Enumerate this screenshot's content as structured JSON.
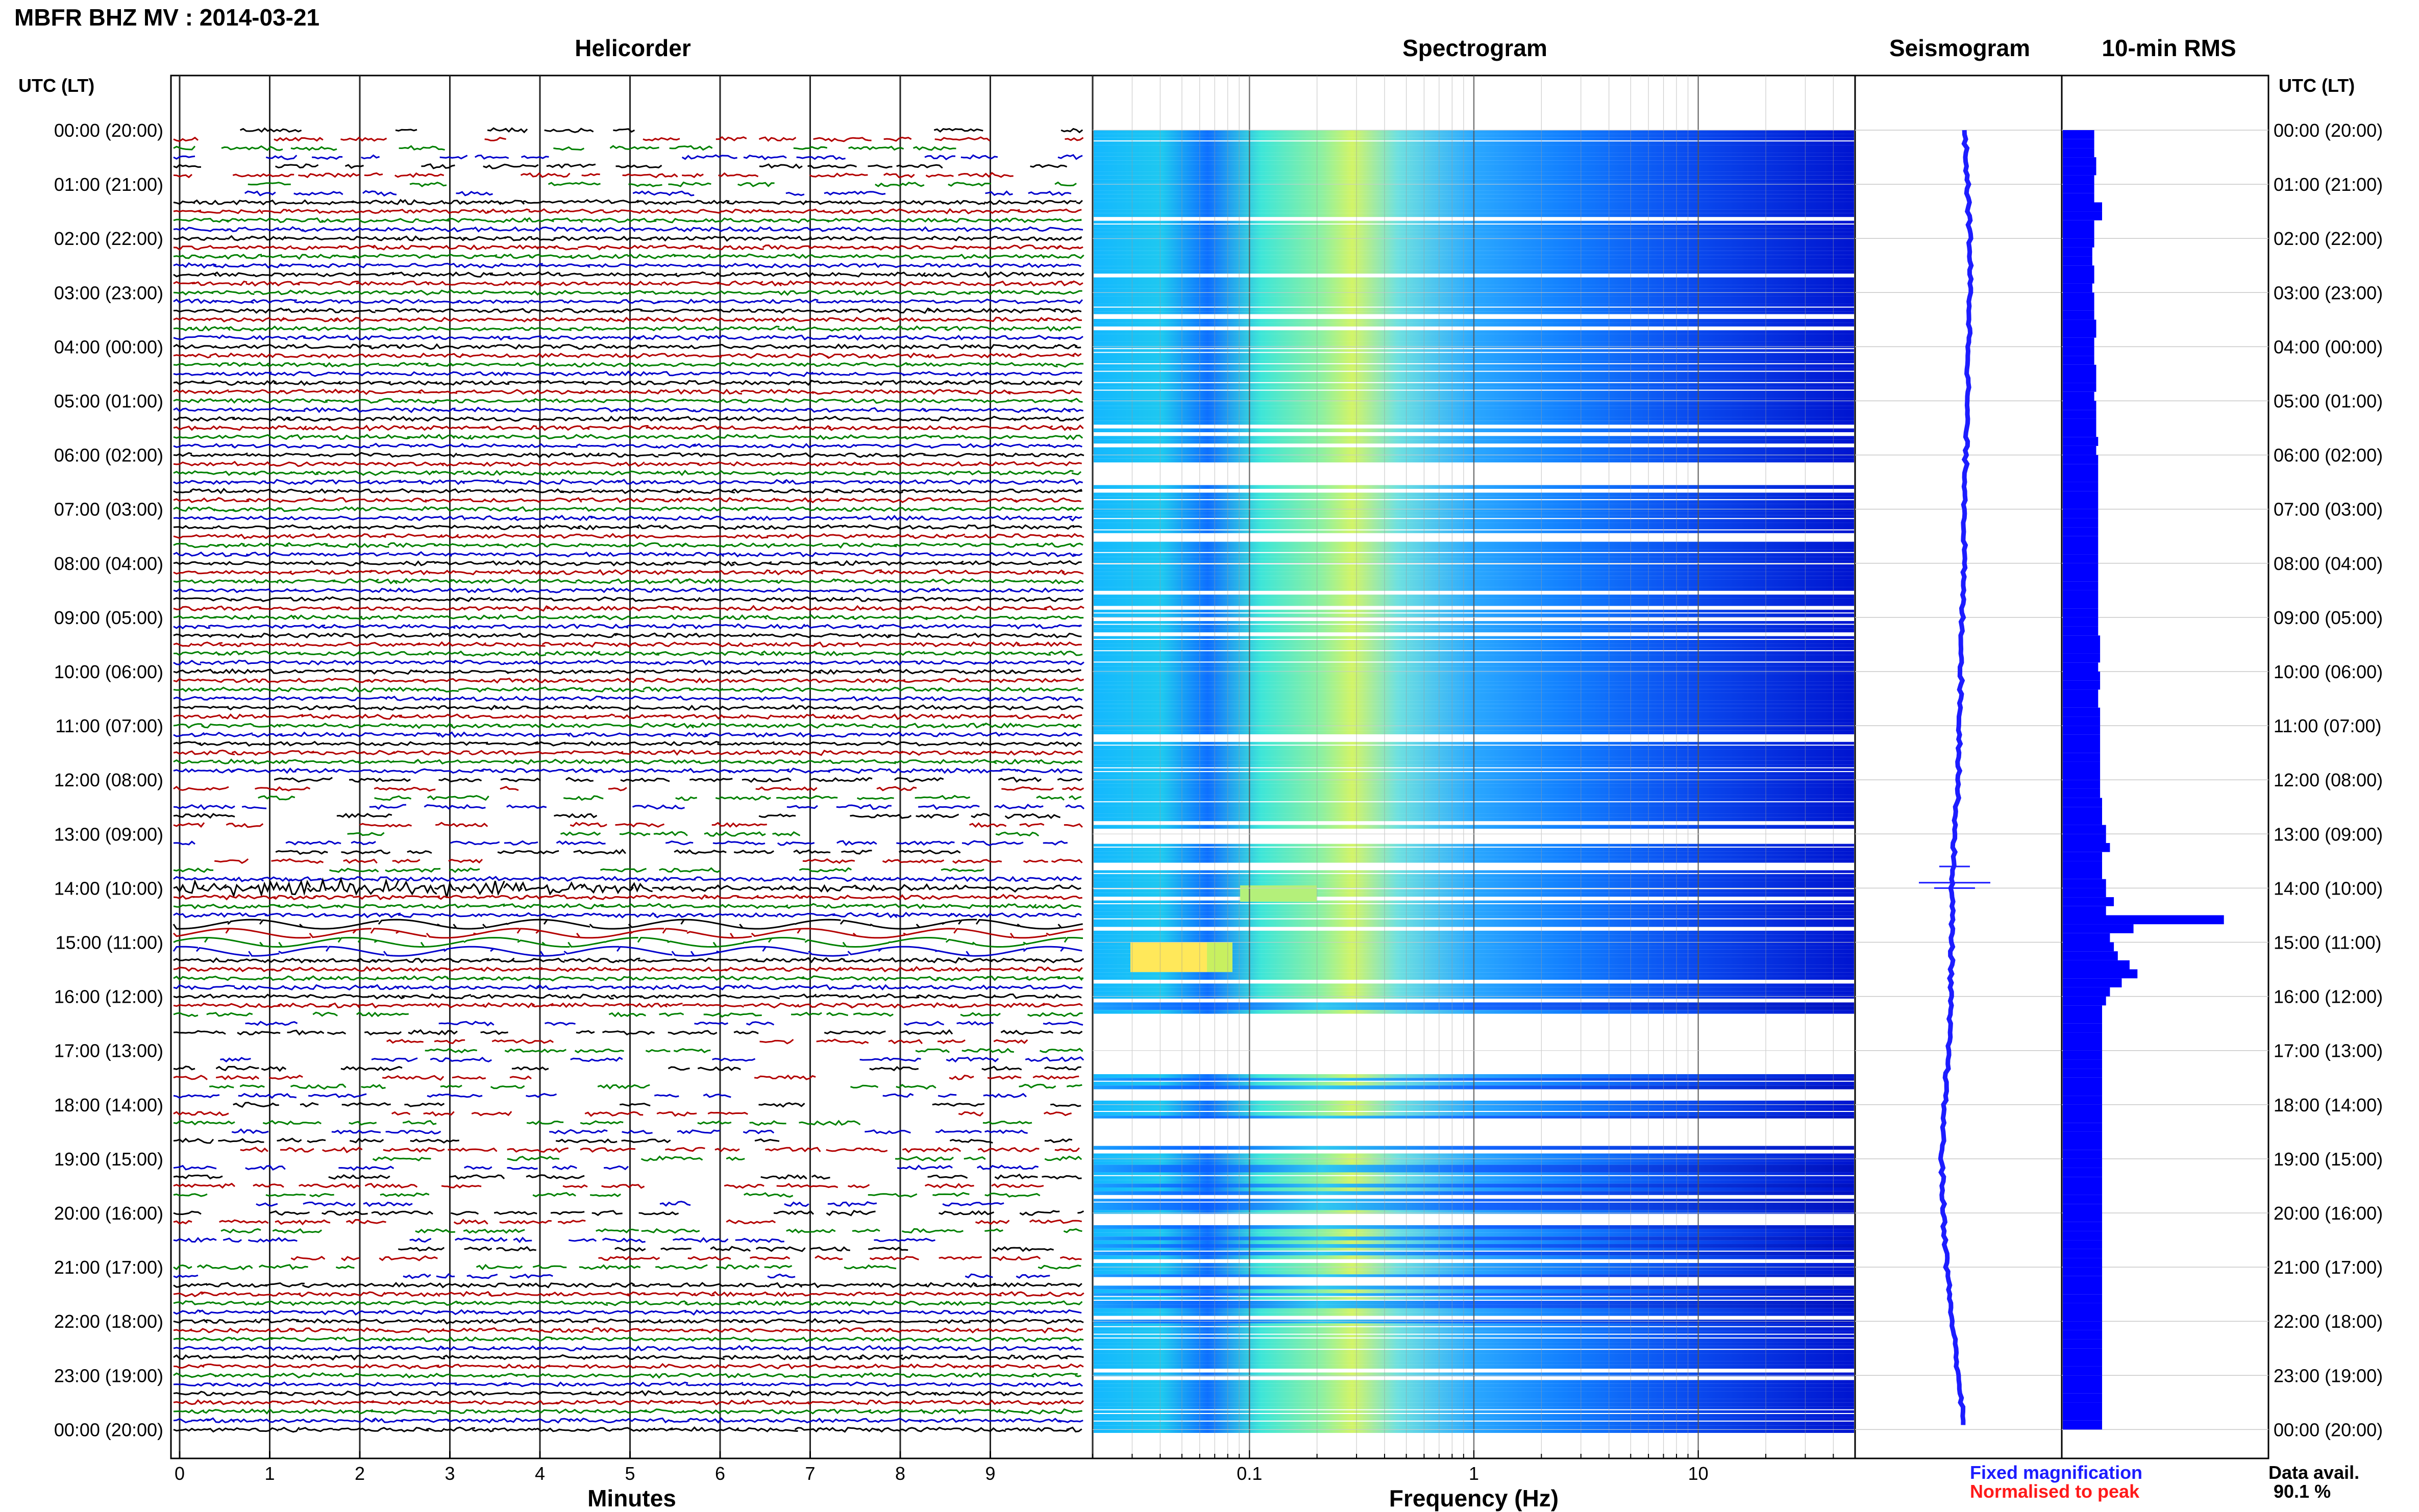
{
  "header": {
    "title": "MBFR BHZ MV : 2014-03-21"
  },
  "panels": {
    "helicorder": {
      "title": "Helicorder",
      "xlabel": "Minutes"
    },
    "spectrogram": {
      "title": "Spectrogram",
      "xlabel": "Frequency (Hz)"
    },
    "seismogram": {
      "title": "Seismogram"
    },
    "rms": {
      "title": "10-min RMS"
    }
  },
  "axis": {
    "left_header": "UTC (LT)",
    "right_header": "UTC (LT)",
    "hour_labels": [
      "00:00 (20:00)",
      "01:00 (21:00)",
      "02:00 (22:00)",
      "03:00 (23:00)",
      "04:00 (00:00)",
      "05:00 (01:00)",
      "06:00 (02:00)",
      "07:00 (03:00)",
      "08:00 (04:00)",
      "09:00 (05:00)",
      "10:00 (06:00)",
      "11:00 (07:00)",
      "12:00 (08:00)",
      "13:00 (09:00)",
      "14:00 (10:00)",
      "15:00 (11:00)",
      "16:00 (12:00)",
      "17:00 (13:00)",
      "18:00 (14:00)",
      "19:00 (15:00)",
      "20:00 (16:00)",
      "21:00 (17:00)",
      "22:00 (18:00)",
      "23:00 (19:00)",
      "00:00 (20:00)"
    ],
    "minute_ticks": [
      "0",
      "1",
      "2",
      "3",
      "4",
      "5",
      "6",
      "7",
      "8",
      "9"
    ],
    "freq_ticks": [
      "0.1",
      "1",
      "10"
    ]
  },
  "legend": {
    "fixed": "Fixed magnification",
    "normalised": "Normalised to peak",
    "fixed_color": "#1c1cff",
    "normalised_color": "#ff1a1a"
  },
  "availability": {
    "label": "Data avail.",
    "value": "90.1 %"
  },
  "chart_data": [
    {
      "type": "line",
      "title": "Helicorder",
      "xlabel": "Minutes",
      "xlim": [
        0,
        10
      ],
      "ylim_hours": [
        0,
        24
      ],
      "trace_colors": [
        "#000000",
        "#b30000",
        "#008000",
        "#0000cc"
      ],
      "traces_per_hour": 6,
      "grid": true,
      "notable_event_hour": 14
    },
    {
      "type": "heatmap",
      "title": "Spectrogram",
      "xlabel": "Frequency (Hz)",
      "xscale": "log",
      "xlim": [
        0.02,
        50
      ],
      "colormap": [
        "#0000d0",
        "#0a6cff",
        "#1ec8ff",
        "#5cf0c8",
        "#c8f55a",
        "#ffe64a"
      ],
      "gap_hours": [
        [
          6.2,
          6.55
        ],
        [
          7.45,
          7.55
        ],
        [
          11.1,
          11.25
        ],
        [
          12.9,
          13.1
        ],
        [
          13.5,
          13.6
        ],
        [
          16.3,
          17.4
        ],
        [
          17.7,
          17.9
        ],
        [
          18.25,
          18.75
        ],
        [
          20.0,
          20.2
        ],
        [
          21.2,
          21.3
        ]
      ],
      "notable_event_hour": 14.2
    },
    {
      "type": "line",
      "title": "Seismogram",
      "color": "#1c1cff",
      "note": "hourly offset drift"
    },
    {
      "type": "bar",
      "title": "10-min RMS",
      "orientation": "horizontal",
      "color": "#0000ff",
      "bin_minutes": 10,
      "values": [
        0.8,
        0.8,
        0.8,
        0.85,
        0.85,
        0.8,
        0.8,
        0.8,
        1.0,
        1.0,
        0.8,
        0.8,
        0.8,
        0.75,
        0.75,
        0.8,
        0.8,
        0.75,
        0.8,
        0.8,
        0.8,
        0.85,
        0.85,
        0.8,
        0.8,
        0.8,
        0.85,
        0.85,
        0.85,
        0.8,
        0.85,
        0.85,
        0.85,
        0.85,
        0.9,
        0.85,
        0.9,
        0.9,
        0.9,
        0.9,
        0.9,
        0.9,
        0.9,
        0.9,
        0.9,
        0.9,
        0.9,
        0.9,
        0.9,
        0.9,
        0.9,
        0.9,
        0.9,
        0.9,
        0.9,
        0.9,
        0.95,
        0.95,
        0.95,
        0.9,
        0.95,
        0.95,
        0.9,
        0.9,
        0.95,
        0.95,
        0.95,
        0.95,
        0.95,
        0.95,
        0.95,
        0.95,
        0.95,
        0.95,
        1.0,
        1.0,
        1.0,
        1.1,
        1.1,
        1.2,
        1.0,
        1.0,
        1.0,
        1.1,
        1.1,
        1.3,
        1.1,
        4.1,
        1.8,
        1.2,
        1.3,
        1.4,
        1.7,
        1.9,
        1.5,
        1.2,
        1.1,
        1.0,
        1.0,
        1.0,
        1.0,
        1.0,
        1.0,
        1.0,
        1.0,
        1.0,
        1.0,
        1.0,
        1.0,
        1.0,
        1.0,
        1.0,
        1.0,
        1.0,
        1.0,
        1.0,
        1.0,
        1.0,
        1.0,
        1.0,
        1.0,
        1.0,
        1.0,
        1.0,
        1.0,
        1.0,
        1.0,
        1.0,
        1.0,
        1.0,
        1.0,
        1.0,
        1.0,
        1.0,
        1.0,
        1.0,
        1.0,
        1.0,
        1.0,
        1.0,
        1.0,
        1.0,
        1.0,
        1.0
      ]
    }
  ]
}
